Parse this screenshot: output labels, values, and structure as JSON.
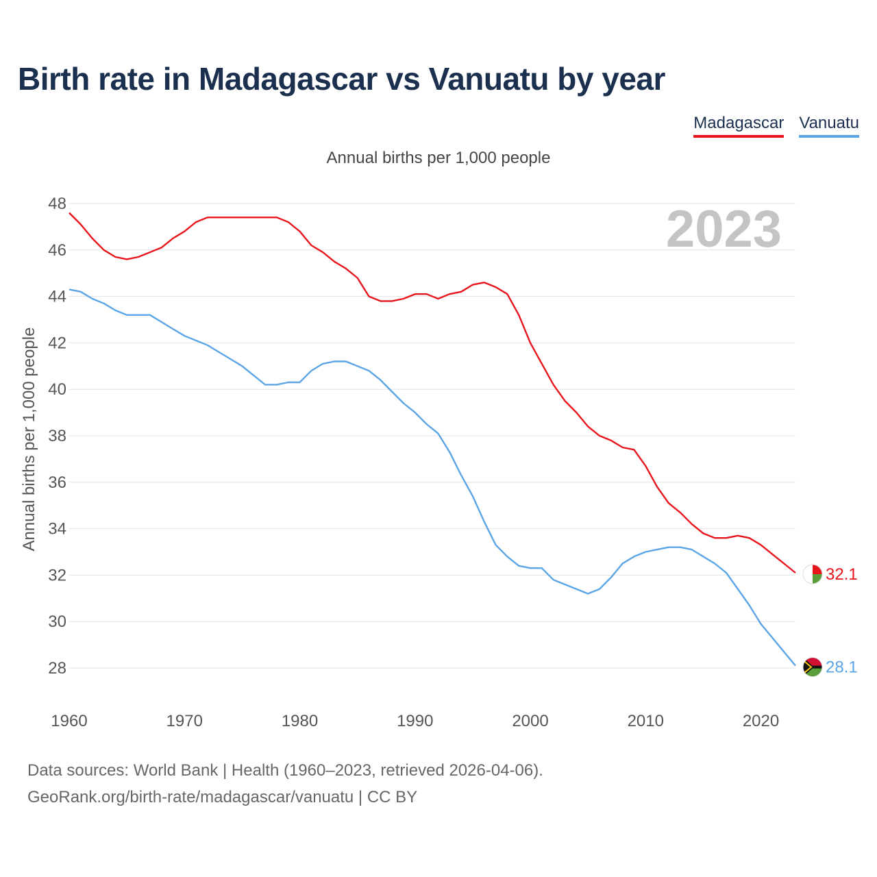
{
  "title": "Birth rate in Madagascar vs Vanuatu by year",
  "legend": [
    {
      "label": "Madagascar",
      "color": "#e8141c"
    },
    {
      "label": "Vanuatu",
      "color": "#5ba4e6"
    }
  ],
  "year_label": "2023",
  "footer": {
    "line1": "Data sources: World Bank | Health (1960–2023, retrieved 2026-04-06).",
    "line2": "GeoRank.org/birth-rate/madagascar/vanuatu | CC BY"
  },
  "chart_data": {
    "type": "line",
    "title": "Annual births per 1,000 people",
    "xlabel": "",
    "ylabel": "Annual births per 1,000 people",
    "xlim": [
      1960,
      2023
    ],
    "ylim": [
      27,
      48
    ],
    "xticks": [
      1960,
      1970,
      1980,
      1990,
      2000,
      2010,
      2020
    ],
    "yticks": [
      28,
      30,
      32,
      34,
      36,
      38,
      40,
      42,
      44,
      46,
      48
    ],
    "grid": true,
    "x": [
      1960,
      1961,
      1962,
      1963,
      1964,
      1965,
      1966,
      1967,
      1968,
      1969,
      1970,
      1971,
      1972,
      1973,
      1974,
      1975,
      1976,
      1977,
      1978,
      1979,
      1980,
      1981,
      1982,
      1983,
      1984,
      1985,
      1986,
      1987,
      1988,
      1989,
      1990,
      1991,
      1992,
      1993,
      1994,
      1995,
      1996,
      1997,
      1998,
      1999,
      2000,
      2001,
      2002,
      2003,
      2004,
      2005,
      2006,
      2007,
      2008,
      2009,
      2010,
      2011,
      2012,
      2013,
      2014,
      2015,
      2016,
      2017,
      2018,
      2019,
      2020,
      2021,
      2022,
      2023
    ],
    "series": [
      {
        "name": "Madagascar",
        "color": "#e8141c",
        "end_label": "32.1",
        "values": [
          47.6,
          47.1,
          46.5,
          46.0,
          45.7,
          45.6,
          45.7,
          45.9,
          46.1,
          46.5,
          46.8,
          47.2,
          47.4,
          47.4,
          47.4,
          47.4,
          47.4,
          47.4,
          47.4,
          47.2,
          46.8,
          46.2,
          45.9,
          45.5,
          45.2,
          44.8,
          44.0,
          43.8,
          43.8,
          43.9,
          44.1,
          44.1,
          43.9,
          44.1,
          44.2,
          44.5,
          44.6,
          44.4,
          44.1,
          43.2,
          42.0,
          41.1,
          40.2,
          39.5,
          39.0,
          38.4,
          38.0,
          37.8,
          37.5,
          37.4,
          36.7,
          35.8,
          35.1,
          34.7,
          34.2,
          33.8,
          33.6,
          33.6,
          33.7,
          33.6,
          33.3,
          32.9,
          32.5,
          32.1
        ]
      },
      {
        "name": "Vanuatu",
        "color": "#5ba4e6",
        "end_label": "28.1",
        "values": [
          44.3,
          44.2,
          43.9,
          43.7,
          43.4,
          43.2,
          43.2,
          43.2,
          42.9,
          42.6,
          42.3,
          42.1,
          41.9,
          41.6,
          41.3,
          41.0,
          40.6,
          40.2,
          40.2,
          40.3,
          40.3,
          40.8,
          41.1,
          41.2,
          41.2,
          41.0,
          40.8,
          40.4,
          39.9,
          39.4,
          39.0,
          38.5,
          38.1,
          37.3,
          36.3,
          35.4,
          34.3,
          33.3,
          32.8,
          32.4,
          32.3,
          32.3,
          31.8,
          31.6,
          31.4,
          31.2,
          31.4,
          31.9,
          32.5,
          32.8,
          33.0,
          33.1,
          33.2,
          33.2,
          33.1,
          32.8,
          32.5,
          32.1,
          31.4,
          30.7,
          29.9,
          29.3,
          28.7,
          28.1
        ]
      }
    ]
  }
}
